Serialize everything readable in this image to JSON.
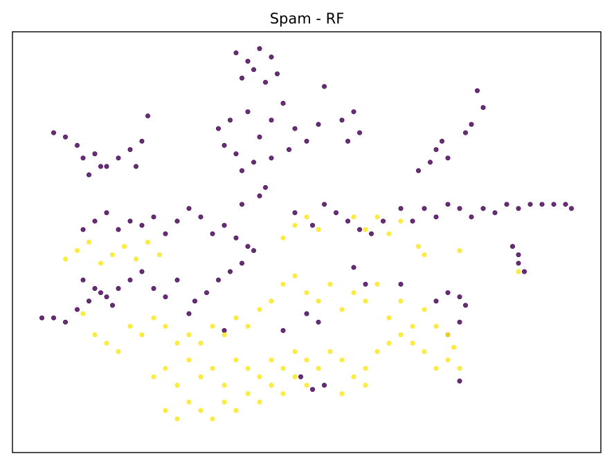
{
  "chart_data": {
    "type": "scatter",
    "title": "Spam - RF",
    "xlabel": "",
    "ylabel": "",
    "xlim": [
      0,
      100
    ],
    "ylim": [
      0,
      100
    ],
    "grid": false,
    "ticks_visible": false,
    "series": [
      {
        "color": "#440154",
        "points": [
          [
            38,
            95
          ],
          [
            40,
            93
          ],
          [
            42,
            96
          ],
          [
            39,
            89
          ],
          [
            41,
            91
          ],
          [
            43,
            88
          ],
          [
            44,
            94
          ],
          [
            45,
            90
          ],
          [
            35,
            77
          ],
          [
            37,
            79
          ],
          [
            36,
            73
          ],
          [
            40,
            81
          ],
          [
            42,
            75
          ],
          [
            44,
            79
          ],
          [
            46,
            83
          ],
          [
            48,
            77
          ],
          [
            38,
            71
          ],
          [
            39,
            67
          ],
          [
            41,
            69
          ],
          [
            44,
            70
          ],
          [
            47,
            72
          ],
          [
            50,
            74
          ],
          [
            52,
            78
          ],
          [
            53,
            87
          ],
          [
            56,
            79
          ],
          [
            58,
            81
          ],
          [
            57,
            74
          ],
          [
            59,
            76
          ],
          [
            42,
            61
          ],
          [
            43,
            63
          ],
          [
            39,
            59
          ],
          [
            79,
            86
          ],
          [
            80,
            82
          ],
          [
            78,
            78
          ],
          [
            77,
            76
          ],
          [
            72,
            72
          ],
          [
            73,
            74
          ],
          [
            74,
            70
          ],
          [
            69,
            67
          ],
          [
            71,
            69
          ],
          [
            7,
            76
          ],
          [
            9,
            75
          ],
          [
            11,
            73
          ],
          [
            12,
            70
          ],
          [
            14,
            71
          ],
          [
            16,
            68
          ],
          [
            18,
            70
          ],
          [
            20,
            72
          ],
          [
            21,
            68
          ],
          [
            13,
            66
          ],
          [
            15,
            68
          ],
          [
            22,
            74
          ],
          [
            23,
            80
          ],
          [
            12,
            53
          ],
          [
            14,
            55
          ],
          [
            16,
            57
          ],
          [
            18,
            53
          ],
          [
            20,
            55
          ],
          [
            22,
            54
          ],
          [
            24,
            56
          ],
          [
            26,
            52
          ],
          [
            28,
            55
          ],
          [
            30,
            58
          ],
          [
            32,
            56
          ],
          [
            34,
            52
          ],
          [
            36,
            54
          ],
          [
            38,
            51
          ],
          [
            40,
            49
          ],
          [
            48,
            57
          ],
          [
            51,
            54
          ],
          [
            53,
            59
          ],
          [
            55,
            57
          ],
          [
            57,
            55
          ],
          [
            59,
            53
          ],
          [
            61,
            52
          ],
          [
            63,
            55
          ],
          [
            66,
            58
          ],
          [
            68,
            55
          ],
          [
            70,
            58
          ],
          [
            72,
            56
          ],
          [
            74,
            59
          ],
          [
            76,
            58
          ],
          [
            78,
            56
          ],
          [
            80,
            58
          ],
          [
            82,
            57
          ],
          [
            84,
            59
          ],
          [
            86,
            58
          ],
          [
            88,
            59
          ],
          [
            90,
            59
          ],
          [
            92,
            59
          ],
          [
            94,
            59
          ],
          [
            95,
            58
          ],
          [
            85,
            49
          ],
          [
            86,
            47
          ],
          [
            86,
            45
          ],
          [
            87,
            43
          ],
          [
            12,
            41
          ],
          [
            14,
            39
          ],
          [
            16,
            37
          ],
          [
            18,
            39
          ],
          [
            20,
            41
          ],
          [
            22,
            43
          ],
          [
            24,
            39
          ],
          [
            26,
            37
          ],
          [
            28,
            41
          ],
          [
            30,
            33
          ],
          [
            31,
            36
          ],
          [
            33,
            38
          ],
          [
            35,
            41
          ],
          [
            37,
            43
          ],
          [
            39,
            45
          ],
          [
            41,
            48
          ],
          [
            5,
            32
          ],
          [
            7,
            32
          ],
          [
            9,
            31
          ],
          [
            11,
            34
          ],
          [
            13,
            36
          ],
          [
            15,
            38
          ],
          [
            17,
            35
          ],
          [
            72,
            36
          ],
          [
            74,
            38
          ],
          [
            76,
            37
          ],
          [
            77,
            35
          ],
          [
            74,
            28
          ],
          [
            76,
            31
          ],
          [
            58,
            44
          ],
          [
            60,
            40
          ],
          [
            66,
            40
          ],
          [
            50,
            33
          ],
          [
            52,
            31
          ],
          [
            36,
            29
          ],
          [
            46,
            29
          ],
          [
            49,
            18
          ],
          [
            51,
            15
          ],
          [
            53,
            16
          ],
          [
            76,
            17
          ]
        ]
      },
      {
        "color": "#fde725",
        "points": [
          [
            9,
            46
          ],
          [
            11,
            48
          ],
          [
            13,
            50
          ],
          [
            15,
            45
          ],
          [
            17,
            47
          ],
          [
            19,
            49
          ],
          [
            21,
            46
          ],
          [
            23,
            50
          ],
          [
            25,
            47
          ],
          [
            12,
            33
          ],
          [
            14,
            28
          ],
          [
            16,
            26
          ],
          [
            18,
            24
          ],
          [
            20,
            30
          ],
          [
            22,
            28
          ],
          [
            24,
            32
          ],
          [
            26,
            30
          ],
          [
            28,
            26
          ],
          [
            30,
            28
          ],
          [
            32,
            26
          ],
          [
            34,
            30
          ],
          [
            36,
            28
          ],
          [
            38,
            32
          ],
          [
            40,
            30
          ],
          [
            42,
            34
          ],
          [
            44,
            36
          ],
          [
            46,
            40
          ],
          [
            48,
            42
          ],
          [
            50,
            38
          ],
          [
            52,
            36
          ],
          [
            54,
            40
          ],
          [
            56,
            34
          ],
          [
            58,
            38
          ],
          [
            60,
            36
          ],
          [
            62,
            40
          ],
          [
            64,
            32
          ],
          [
            66,
            36
          ],
          [
            68,
            30
          ],
          [
            70,
            34
          ],
          [
            72,
            30
          ],
          [
            74,
            28
          ],
          [
            24,
            18
          ],
          [
            26,
            20
          ],
          [
            28,
            16
          ],
          [
            30,
            22
          ],
          [
            32,
            18
          ],
          [
            34,
            20
          ],
          [
            36,
            16
          ],
          [
            38,
            22
          ],
          [
            40,
            20
          ],
          [
            42,
            18
          ],
          [
            44,
            22
          ],
          [
            46,
            20
          ],
          [
            48,
            24
          ],
          [
            50,
            22
          ],
          [
            52,
            20
          ],
          [
            54,
            24
          ],
          [
            56,
            22
          ],
          [
            58,
            18
          ],
          [
            60,
            20
          ],
          [
            62,
            24
          ],
          [
            64,
            26
          ],
          [
            66,
            28
          ],
          [
            68,
            26
          ],
          [
            70,
            24
          ],
          [
            72,
            20
          ],
          [
            74,
            22
          ],
          [
            75,
            25
          ],
          [
            76,
            20
          ],
          [
            26,
            10
          ],
          [
            28,
            8
          ],
          [
            30,
            12
          ],
          [
            32,
            10
          ],
          [
            34,
            8
          ],
          [
            36,
            12
          ],
          [
            38,
            10
          ],
          [
            40,
            14
          ],
          [
            42,
            12
          ],
          [
            44,
            16
          ],
          [
            46,
            14
          ],
          [
            48,
            18
          ],
          [
            50,
            16
          ],
          [
            56,
            14
          ],
          [
            60,
            16
          ],
          [
            58,
            56
          ],
          [
            60,
            53
          ],
          [
            62,
            56
          ],
          [
            64,
            52
          ],
          [
            66,
            55
          ],
          [
            69,
            49
          ],
          [
            70,
            47
          ],
          [
            46,
            51
          ],
          [
            48,
            54
          ],
          [
            50,
            56
          ],
          [
            52,
            53
          ],
          [
            86,
            43
          ],
          [
            76,
            48
          ]
        ]
      }
    ]
  }
}
